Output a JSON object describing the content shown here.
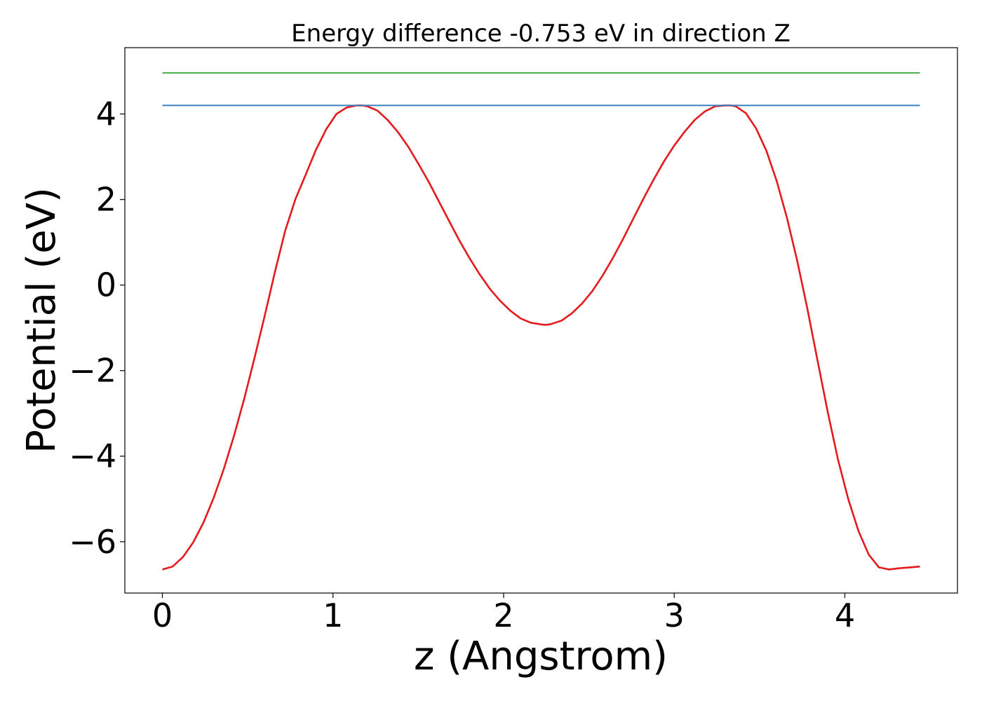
{
  "chart_data": {
    "type": "line",
    "title": "Energy difference -0.753 eV in direction Z",
    "xlabel": "z (Angstrom)",
    "ylabel": "Potential (eV)",
    "xlim": [
      -0.22,
      4.66
    ],
    "ylim": [
      -7.2,
      5.55
    ],
    "xticks": [
      0,
      1,
      2,
      3,
      4
    ],
    "yticks": [
      -6,
      -4,
      -2,
      0,
      2,
      4
    ],
    "xtick_labels": [
      "0",
      "1",
      "2",
      "3",
      "4"
    ],
    "ytick_labels": [
      "−6",
      "−4",
      "−2",
      "0",
      "2",
      "4"
    ],
    "grid": false,
    "series": [
      {
        "color": "#e41a1c",
        "x": [
          0.0,
          0.06,
          0.12,
          0.18,
          0.24,
          0.3,
          0.36,
          0.42,
          0.48,
          0.54,
          0.6,
          0.66,
          0.72,
          0.78,
          0.84,
          0.9,
          0.96,
          1.02,
          1.08,
          1.14,
          1.17,
          1.2,
          1.26,
          1.32,
          1.38,
          1.44,
          1.5,
          1.56,
          1.62,
          1.68,
          1.74,
          1.8,
          1.86,
          1.92,
          1.98,
          2.04,
          2.1,
          2.16,
          2.22,
          2.25,
          2.28,
          2.34,
          2.4,
          2.46,
          2.52,
          2.58,
          2.64,
          2.7,
          2.76,
          2.82,
          2.88,
          2.94,
          3.0,
          3.06,
          3.12,
          3.18,
          3.24,
          3.3,
          3.33,
          3.36,
          3.42,
          3.48,
          3.54,
          3.6,
          3.66,
          3.72,
          3.78,
          3.84,
          3.9,
          3.96,
          4.02,
          4.08,
          4.14,
          4.2,
          4.26,
          4.32,
          4.38,
          4.44
        ],
        "y": [
          -6.65,
          -6.58,
          -6.36,
          -6.02,
          -5.56,
          -4.98,
          -4.3,
          -3.52,
          -2.65,
          -1.7,
          -0.71,
          0.31,
          1.27,
          2.01,
          2.58,
          3.16,
          3.64,
          4.0,
          4.15,
          4.2,
          4.2,
          4.18,
          4.08,
          3.86,
          3.58,
          3.24,
          2.84,
          2.42,
          1.96,
          1.5,
          1.05,
          0.63,
          0.25,
          -0.09,
          -0.37,
          -0.6,
          -0.78,
          -0.88,
          -0.92,
          -0.93,
          -0.91,
          -0.83,
          -0.66,
          -0.43,
          -0.14,
          0.22,
          0.63,
          1.08,
          1.55,
          2.02,
          2.47,
          2.89,
          3.26,
          3.58,
          3.86,
          4.06,
          4.18,
          4.2,
          4.2,
          4.18,
          4.02,
          3.66,
          3.14,
          2.44,
          1.58,
          0.58,
          -0.55,
          -1.76,
          -2.97,
          -4.08,
          -5.0,
          -5.75,
          -6.3,
          -6.6,
          -6.65,
          -6.62,
          -6.6,
          -6.58
        ]
      },
      {
        "color": "#3a7fc1",
        "x": [
          0.0,
          4.44
        ],
        "y": [
          4.2,
          4.2
        ]
      },
      {
        "color": "#4caf50",
        "x": [
          0.0,
          4.44
        ],
        "y": [
          4.96,
          4.96
        ]
      }
    ]
  }
}
